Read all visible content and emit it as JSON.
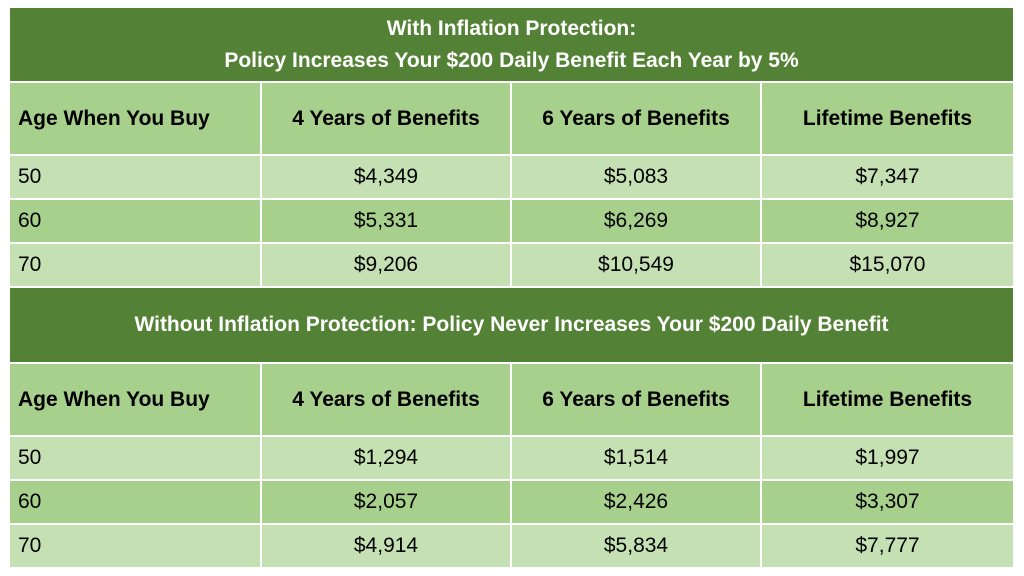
{
  "sections": [
    {
      "title_line1": "With Inflation Protection:",
      "title_line2": "Policy Increases Your $200 Daily Benefit Each Year by 5%",
      "headers": [
        "Age When You Buy",
        "4 Years of Benefits",
        "6 Years of Benefits",
        "Lifetime Benefits"
      ],
      "rows": [
        [
          "50",
          "$4,349",
          "$5,083",
          "$7,347"
        ],
        [
          "60",
          "$5,331",
          "$6,269",
          "$8,927"
        ],
        [
          "70",
          "$9,206",
          "$10,549",
          "$15,070"
        ]
      ]
    },
    {
      "title_line1": "Without Inflation Protection:  Policy Never Increases Your $200 Daily Benefit",
      "headers": [
        "Age When You Buy",
        "4 Years of Benefits",
        "6 Years of Benefits",
        "Lifetime Benefits"
      ],
      "rows": [
        [
          "50",
          "$1,294",
          "$1,514",
          "$1,997"
        ],
        [
          "60",
          "$2,057",
          "$2,426",
          "$3,307"
        ],
        [
          "70",
          "$4,914",
          "$5,834",
          "$7,777"
        ]
      ]
    }
  ],
  "colors": {
    "header_dark_green": "#538135",
    "medium_green": "#a8d08d",
    "light_green": "#c5e0b3"
  }
}
